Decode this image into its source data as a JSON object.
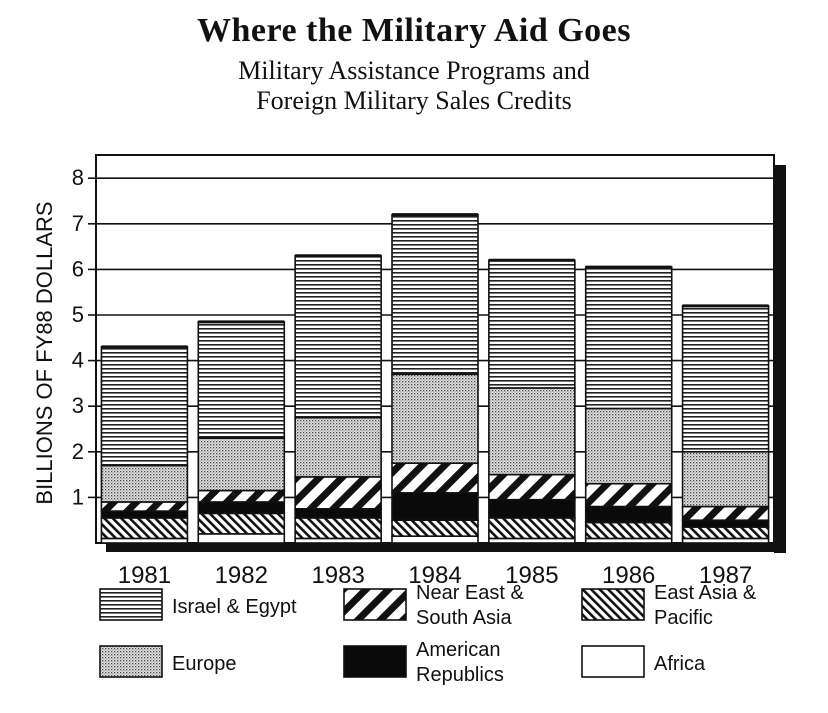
{
  "chart_data": {
    "type": "bar",
    "stacked": true,
    "title": "Where the Military Aid Goes",
    "subtitle_line1": "Military Assistance Programs and",
    "subtitle_line2": "Foreign Military Sales Credits",
    "xlabel": "",
    "ylabel": "BILLIONS OF FY88 DOLLARS",
    "ylim": [
      0,
      8
    ],
    "yticks": [
      "1",
      "2",
      "3",
      "4",
      "5",
      "6",
      "7",
      "8"
    ],
    "categories": [
      "1981",
      "1982",
      "1983",
      "1984",
      "1985",
      "1986",
      "1987"
    ],
    "grid": true,
    "legend_position": "bottom",
    "series": [
      {
        "name": "Africa",
        "pattern": "white",
        "values": [
          0.1,
          0.2,
          0.1,
          0.15,
          0.1,
          0.1,
          0.1
        ]
      },
      {
        "name": "East Asia & Pacific",
        "pattern": "diagonal-hatch",
        "values": [
          0.45,
          0.45,
          0.45,
          0.35,
          0.45,
          0.35,
          0.25
        ]
      },
      {
        "name": "American Republics",
        "pattern": "solid-black",
        "values": [
          0.15,
          0.25,
          0.2,
          0.6,
          0.4,
          0.35,
          0.15
        ]
      },
      {
        "name": "Near East & South Asia",
        "pattern": "wide-diagonal",
        "values": [
          0.2,
          0.25,
          0.7,
          0.65,
          0.55,
          0.5,
          0.3
        ]
      },
      {
        "name": "Europe",
        "pattern": "dots",
        "values": [
          0.8,
          1.15,
          1.3,
          1.95,
          1.9,
          1.65,
          1.2
        ]
      },
      {
        "name": "Israel & Egypt",
        "pattern": "horizontal-lines",
        "values": [
          2.6,
          2.55,
          3.55,
          3.5,
          2.8,
          3.1,
          3.2
        ]
      }
    ],
    "legend_order": [
      "Israel & Egypt",
      "Near East & South Asia",
      "East Asia & Pacific",
      "Europe",
      "American Republics",
      "Africa"
    ],
    "legend_labels": {
      "Israel & Egypt": [
        "Israel & Egypt"
      ],
      "Near East & South Asia": [
        "Near East &",
        "South Asia"
      ],
      "East Asia & Pacific": [
        "East Asia &",
        "Pacific"
      ],
      "Europe": [
        "Europe"
      ],
      "American Republics": [
        "American",
        "Republics"
      ],
      "Africa": [
        "Africa"
      ]
    }
  }
}
